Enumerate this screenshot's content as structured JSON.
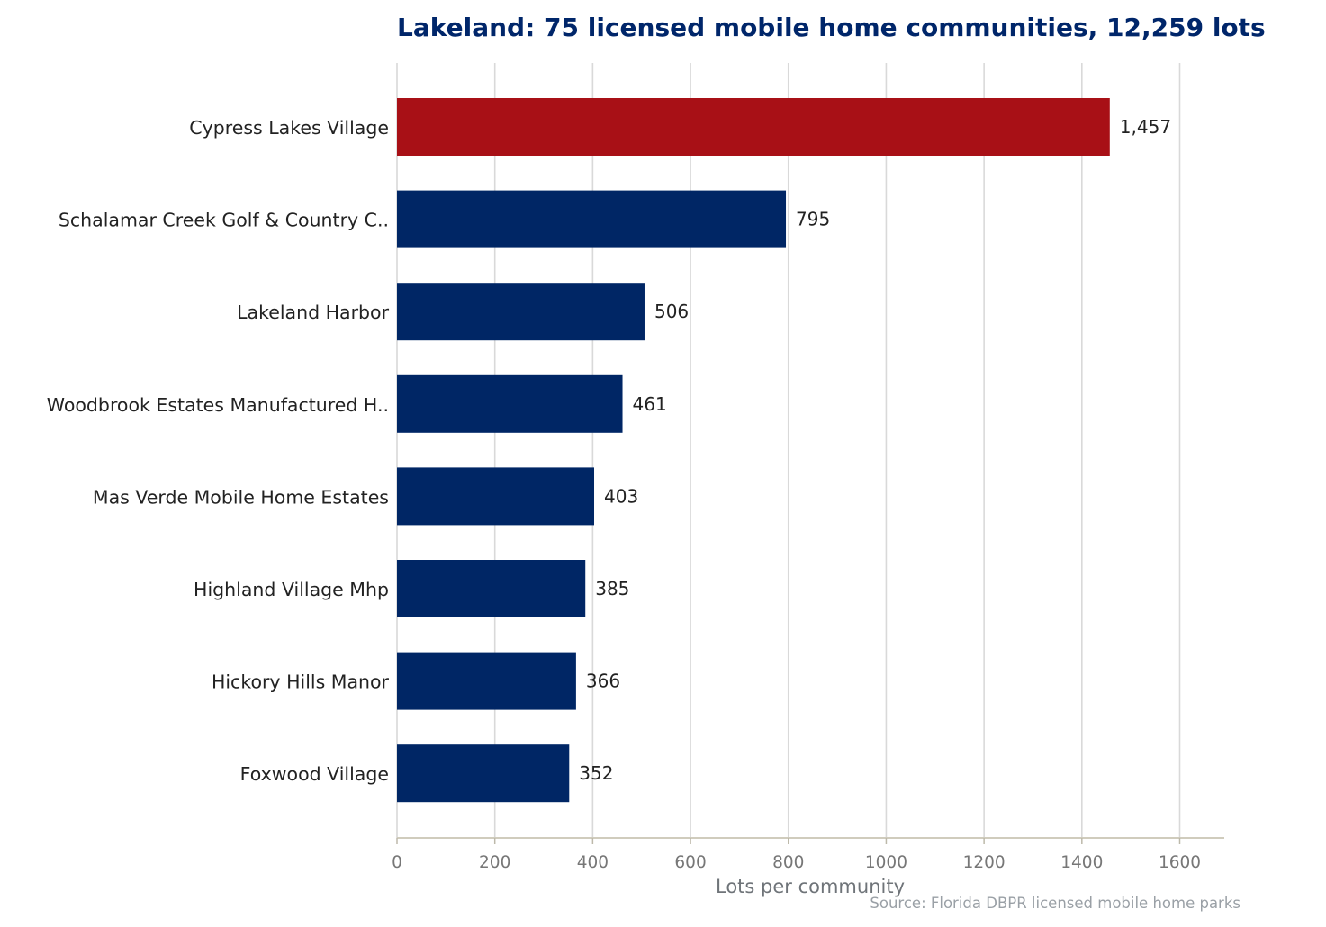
{
  "chart_data": {
    "type": "bar",
    "orientation": "horizontal",
    "title": "Lakeland: 75 licensed mobile home communities, 12,259 lots",
    "xlabel": "Lots per community",
    "ylabel": "",
    "source": "Source: Florida DBPR licensed mobile home parks",
    "xlim": [
      0,
      1690
    ],
    "xticks": [
      0,
      200,
      400,
      600,
      800,
      1000,
      1200,
      1400,
      1600
    ],
    "grid": "vertical",
    "categories": [
      "Cypress Lakes Village",
      "Schalamar Creek Golf & Country C..",
      "Lakeland Harbor",
      "Woodbrook Estates Manufactured H..",
      "Mas Verde Mobile Home Estates",
      "Highland Village Mhp",
      "Hickory Hills Manor",
      "Foxwood Village"
    ],
    "values": [
      1457,
      795,
      506,
      461,
      403,
      385,
      366,
      352
    ],
    "value_labels": [
      "1,457",
      "795",
      "506",
      "461",
      "403",
      "385",
      "366",
      "352"
    ],
    "colors": {
      "highlight": "#a81016",
      "bar": "#002665",
      "title": "#00266a"
    },
    "highlight_index": 0
  }
}
